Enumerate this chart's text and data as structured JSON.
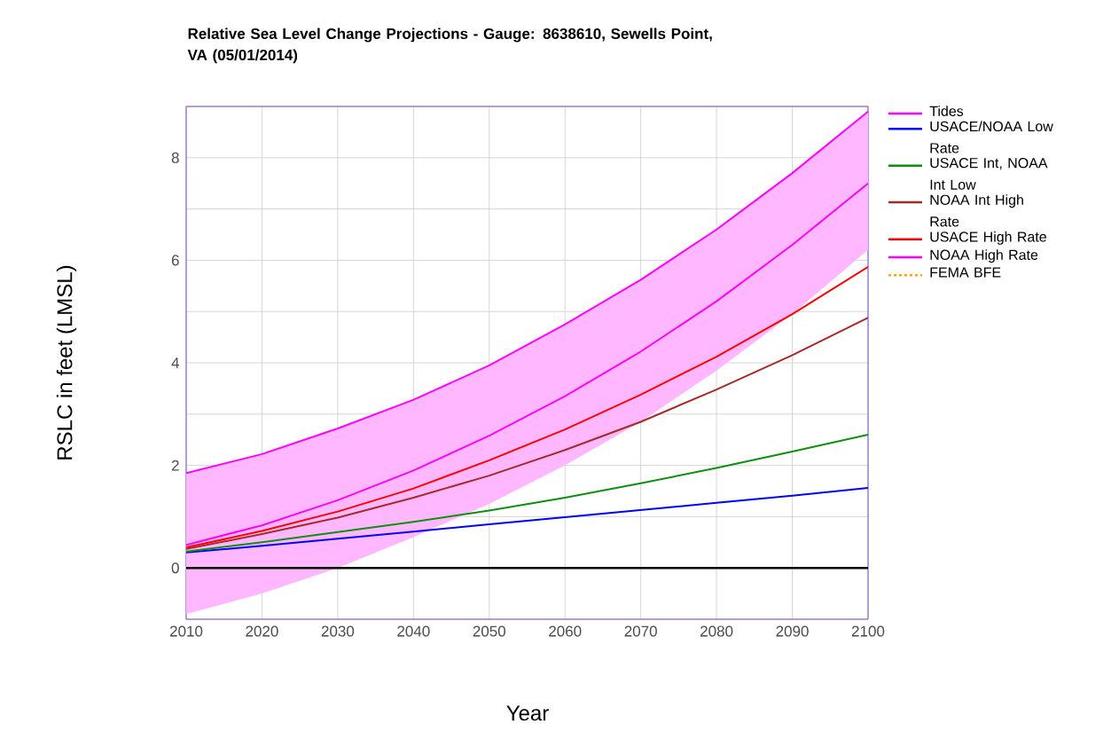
{
  "chart_data": {
    "type": "line",
    "title": "Relative Sea Level Change Projections - Gauge: 8638610, Sewells Point, VA (05/01/2014)",
    "xlabel": "Year",
    "ylabel": "RSLC in feet (LMSL)",
    "x": [
      2010,
      2020,
      2030,
      2040,
      2050,
      2060,
      2070,
      2080,
      2090,
      2100
    ],
    "xlim": [
      2010,
      2100
    ],
    "xticks": [
      2010,
      2020,
      2030,
      2040,
      2050,
      2060,
      2070,
      2080,
      2090,
      2100
    ],
    "ylim": [
      -1,
      9
    ],
    "yticks": [
      {
        "value": -1,
        "label": null
      },
      0,
      {
        "value": 1,
        "label": null
      },
      2,
      {
        "value": 3,
        "label": null
      },
      4,
      {
        "value": 5,
        "label": null
      },
      6,
      {
        "value": 7,
        "label": null
      },
      8,
      {
        "value": 9,
        "label": null
      }
    ],
    "grid": true,
    "legend": "right",
    "ref_lines": [
      {
        "axis": "y",
        "value": 0,
        "color": "#000000"
      }
    ],
    "series": [
      {
        "name": "Tides",
        "color": "#ff00ff",
        "values": [
          1.85,
          2.22,
          2.72,
          3.28,
          3.95,
          4.75,
          5.62,
          6.6,
          7.7,
          8.9
        ],
        "lower": [
          -0.9,
          -0.5,
          0.0,
          0.6,
          1.25,
          2.0,
          2.85,
          3.85,
          4.95,
          6.2
        ],
        "upper": [
          1.85,
          2.22,
          2.72,
          3.28,
          3.95,
          4.75,
          5.62,
          6.6,
          7.7,
          8.9
        ]
      },
      {
        "name": "USACE/NOAA Low Rate",
        "color": "#0000ff",
        "values": [
          0.3,
          0.43,
          0.57,
          0.71,
          0.85,
          0.99,
          1.13,
          1.27,
          1.41,
          1.56
        ]
      },
      {
        "name": "USACE Int, NOAA Int Low",
        "color": "#0f8f0f",
        "values": [
          0.32,
          0.5,
          0.7,
          0.9,
          1.12,
          1.37,
          1.65,
          1.95,
          2.27,
          2.6
        ]
      },
      {
        "name": "NOAA Int High Rate",
        "color": "#a52a2a",
        "values": [
          0.37,
          0.66,
          0.98,
          1.37,
          1.8,
          2.3,
          2.85,
          3.48,
          4.15,
          4.88
        ]
      },
      {
        "name": "USACE High Rate",
        "color": "#ff0000",
        "values": [
          0.4,
          0.72,
          1.1,
          1.55,
          2.1,
          2.7,
          3.38,
          4.12,
          4.95,
          5.87
        ]
      },
      {
        "name": "NOAA High Rate",
        "color": "#ff00ff",
        "values": [
          0.45,
          0.83,
          1.32,
          1.9,
          2.58,
          3.35,
          4.22,
          5.2,
          6.3,
          7.5
        ]
      },
      {
        "name": "FEMA BFE",
        "color": "#ffa500",
        "line_style": "dashed",
        "values": [
          null,
          null,
          null,
          null,
          null,
          null,
          null,
          null,
          null,
          null
        ]
      }
    ]
  }
}
